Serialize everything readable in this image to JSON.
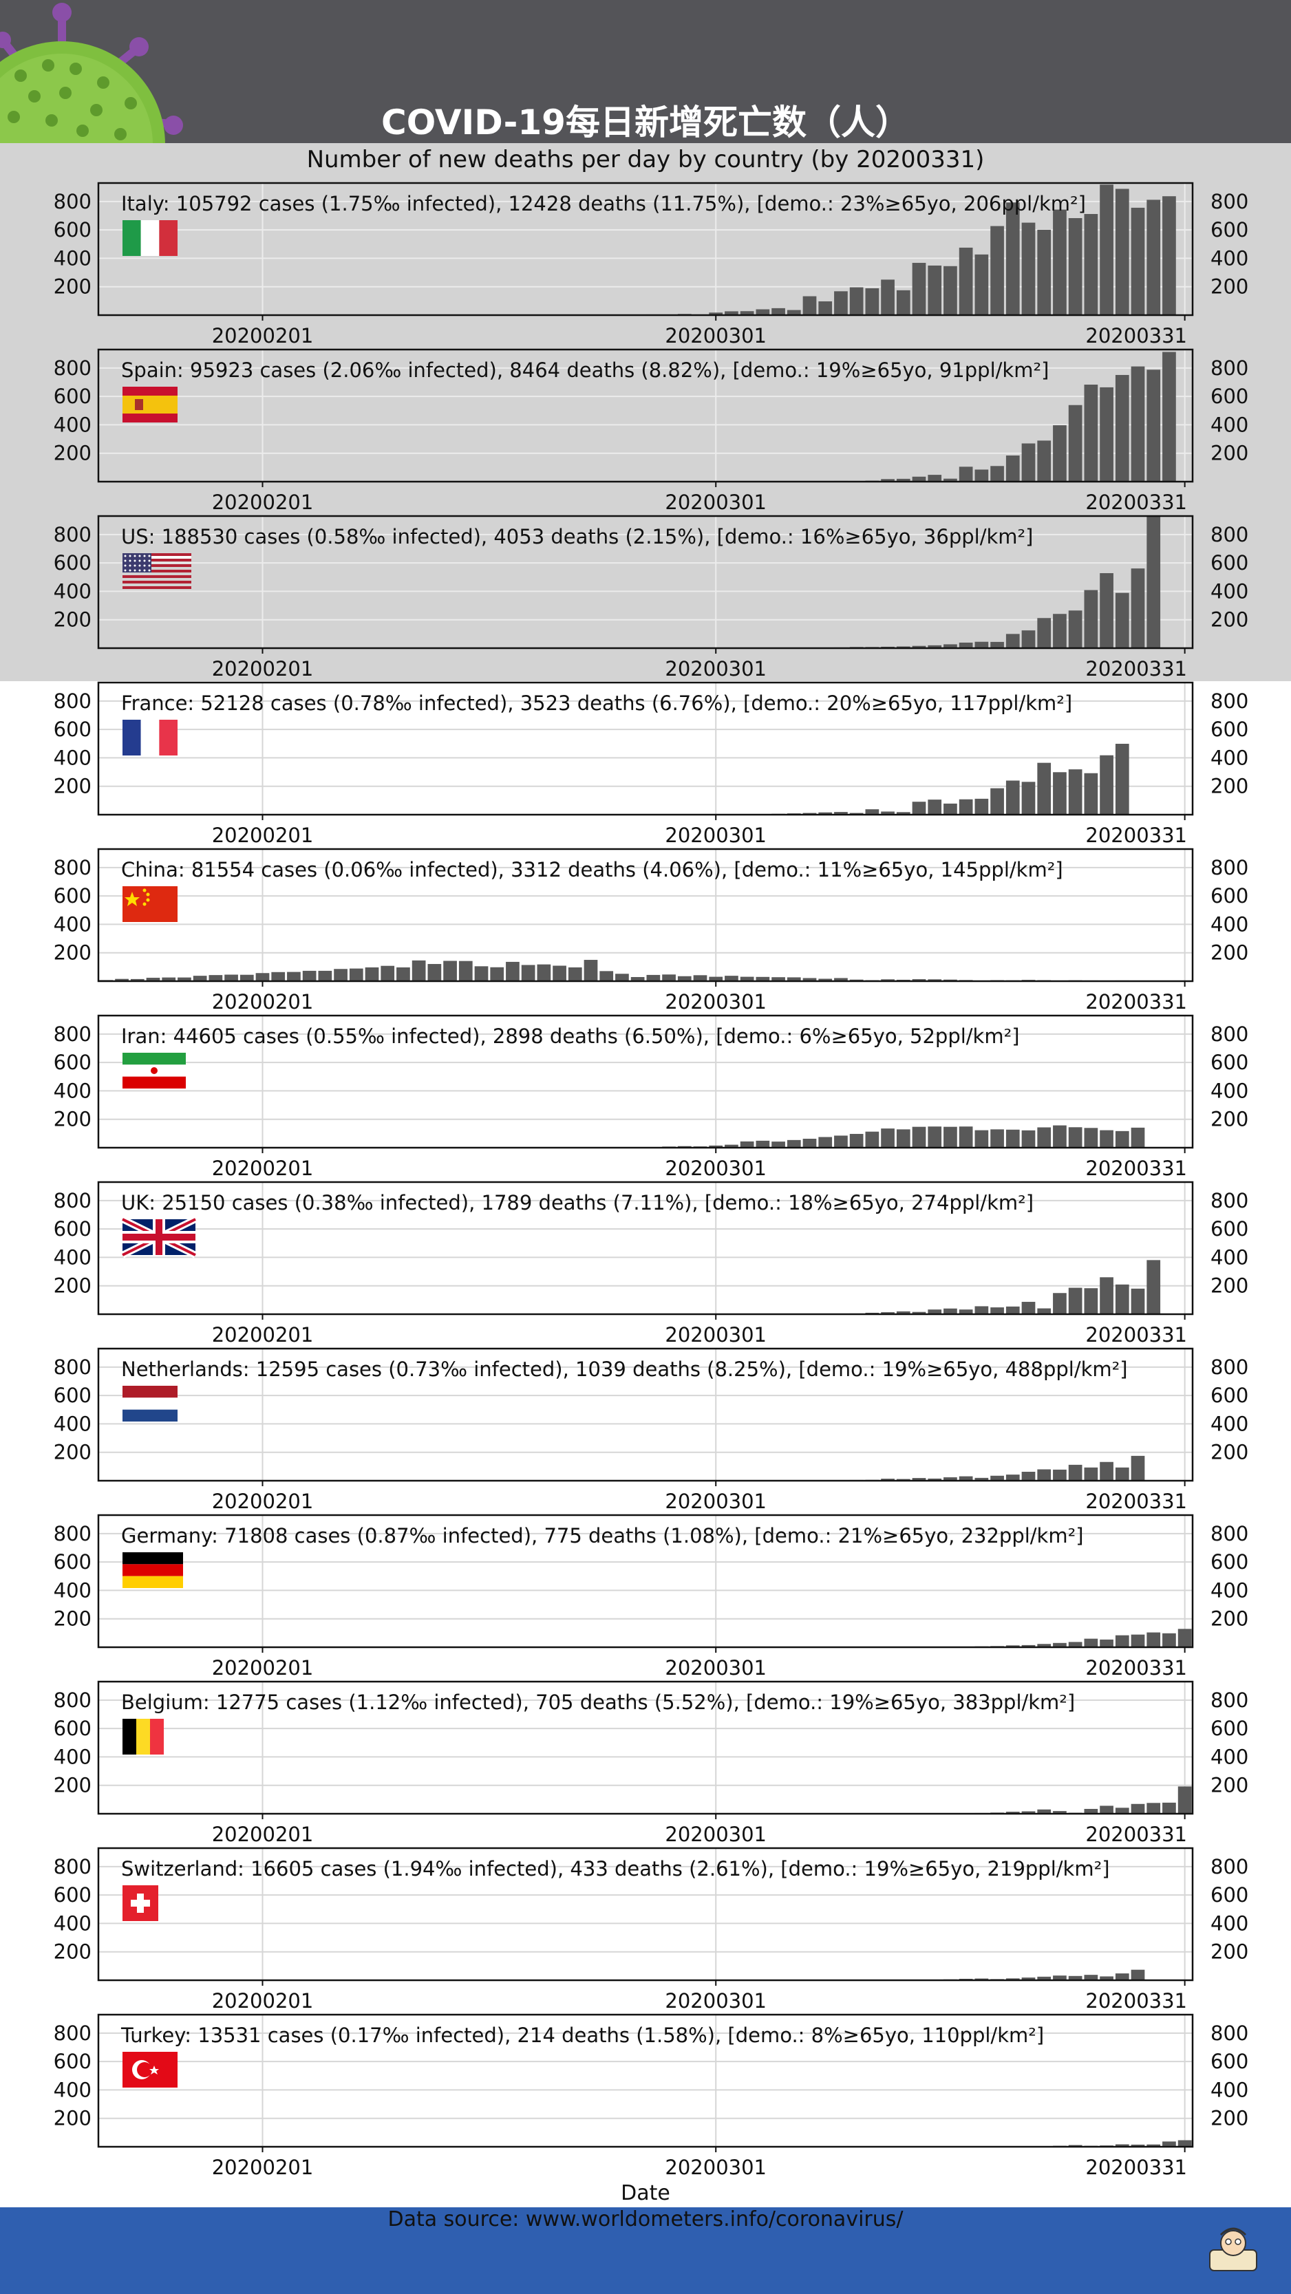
{
  "header": {
    "title": "COVID-19每日新增死亡数（人）",
    "subtitle": "Number of new deaths per day by country (by 20200331)"
  },
  "footer": {
    "source": "Data source: www.worldometers.info/coronavirus/"
  },
  "colors": {
    "header_bg": "#545458",
    "highlight_band": "#d3d3d3",
    "bar": "#595959",
    "footer_bg": "#2f5fb0"
  },
  "chart_data": {
    "type": "bar",
    "xlabel": "Date",
    "x_start": "20200122",
    "x_end": "20200331",
    "x_ticks": [
      "20200201",
      "20200301",
      "20200331"
    ],
    "y_ticks": [
      200,
      400,
      600,
      800
    ],
    "ylim": [
      0,
      930
    ],
    "grid": true,
    "panels": [
      {
        "name": "Italy",
        "flag": "italy-flag",
        "highlighted": true,
        "info": "Italy: 105792 cases (1.75‰ infected), 12428 deaths (11.75%), [demo.: 23%≥65yo, 206ppl/km²]",
        "values": [
          0,
          0,
          0,
          0,
          0,
          0,
          0,
          0,
          0,
          0,
          0,
          0,
          0,
          0,
          0,
          0,
          0,
          0,
          0,
          0,
          0,
          0,
          0,
          0,
          0,
          0,
          0,
          0,
          0,
          0,
          0,
          0,
          1,
          2,
          1,
          5,
          4,
          8,
          5,
          18,
          27,
          28,
          41,
          49,
          36,
          133,
          97,
          168,
          196,
          189,
          250,
          175,
          368,
          349,
          345,
          475,
          427,
          627,
          793,
          651,
          601,
          743,
          683,
          712,
          919,
          889,
          756,
          812,
          837
        ]
      },
      {
        "name": "Spain",
        "flag": "spain-flag",
        "highlighted": true,
        "info": "Spain: 95923 cases (2.06‰ infected), 8464 deaths (8.82%), [demo.: 19%≥65yo, 91ppl/km²]",
        "values": [
          0,
          0,
          0,
          0,
          0,
          0,
          0,
          0,
          0,
          0,
          0,
          0,
          0,
          0,
          0,
          0,
          0,
          0,
          0,
          0,
          0,
          0,
          0,
          0,
          0,
          0,
          0,
          0,
          0,
          0,
          0,
          0,
          0,
          0,
          0,
          0,
          0,
          0,
          0,
          0,
          0,
          0,
          0,
          0,
          1,
          2,
          3,
          5,
          0,
          7,
          18,
          20,
          35,
          48,
          21,
          105,
          85,
          110,
          184,
          269,
          289,
          397,
          539,
          683,
          664,
          751,
          811,
          788,
          913
        ]
      },
      {
        "name": "US",
        "flag": "us-flag",
        "highlighted": true,
        "info": "US: 188530 cases (0.58‰ infected), 4053 deaths (2.15%), [demo.: 16%≥65yo, 36ppl/km²]",
        "values": [
          0,
          0,
          0,
          0,
          0,
          0,
          0,
          0,
          0,
          0,
          0,
          0,
          0,
          0,
          0,
          0,
          0,
          0,
          0,
          0,
          0,
          0,
          0,
          0,
          0,
          0,
          0,
          0,
          0,
          0,
          0,
          0,
          0,
          0,
          0,
          0,
          0,
          0,
          0,
          1,
          2,
          1,
          2,
          3,
          2,
          4,
          4,
          5,
          8,
          8,
          10,
          12,
          16,
          20,
          27,
          39,
          45,
          44,
          100,
          125,
          212,
          241,
          265,
          409,
          528,
          389,
          561,
          930
        ]
      },
      {
        "name": "France",
        "flag": "france-flag",
        "highlighted": false,
        "info": "France: 52128 cases (0.78‰ infected), 3523 deaths (6.76%), [demo.: 20%≥65yo, 117ppl/km²]",
        "values": [
          0,
          0,
          0,
          0,
          0,
          0,
          0,
          0,
          0,
          0,
          0,
          0,
          0,
          0,
          0,
          0,
          0,
          0,
          0,
          0,
          0,
          0,
          0,
          0,
          0,
          0,
          0,
          0,
          0,
          0,
          0,
          0,
          0,
          0,
          0,
          0,
          0,
          0,
          0,
          1,
          2,
          3,
          2,
          6,
          9,
          12,
          16,
          19,
          12,
          38,
          22,
          18,
          91,
          106,
          78,
          108,
          112,
          186,
          240,
          231,
          365,
          299,
          319,
          292,
          418,
          499
        ]
      },
      {
        "name": "China",
        "flag": "china-flag",
        "highlighted": false,
        "info": "China: 81554 cases (0.06‰ infected), 3312 deaths (4.06%), [demo.: 11%≥65yo, 145ppl/km²]",
        "values": [
          8,
          16,
          15,
          24,
          26,
          26,
          38,
          43,
          46,
          45,
          57,
          64,
          65,
          73,
          73,
          86,
          89,
          97,
          108,
          97,
          146,
          121,
          143,
          142,
          105,
          98,
          136,
          114,
          118,
          109,
          97,
          150,
          71,
          52,
          29,
          44,
          47,
          35,
          42,
          31,
          38,
          31,
          30,
          28,
          27,
          22,
          17,
          22,
          11,
          7,
          13,
          10,
          14,
          13,
          11,
          8,
          3,
          7,
          6,
          9,
          7,
          4,
          6,
          5,
          3,
          5,
          2,
          1,
          1
        ]
      },
      {
        "name": "Iran",
        "flag": "iran-flag",
        "highlighted": false,
        "info": "Iran: 44605 cases (0.55‰ infected), 2898 deaths (6.50%), [demo.: 6%≥65yo, 52ppl/km²]",
        "values": [
          0,
          0,
          0,
          0,
          0,
          0,
          0,
          0,
          0,
          0,
          0,
          0,
          0,
          0,
          0,
          0,
          0,
          0,
          0,
          0,
          0,
          0,
          0,
          0,
          0,
          0,
          0,
          0,
          0,
          0,
          0,
          2,
          2,
          4,
          3,
          4,
          8,
          11,
          9,
          15,
          21,
          44,
          49,
          43,
          54,
          63,
          75,
          85,
          97,
          113,
          135,
          129,
          147,
          149,
          147,
          149,
          123,
          129,
          127,
          122,
          143,
          157,
          144,
          139,
          123,
          117,
          141
        ]
      },
      {
        "name": "UK",
        "flag": "uk-flag",
        "highlighted": false,
        "info": "UK: 25150 cases (0.38‰ infected), 1789 deaths (7.11%), [demo.: 18%≥65yo, 274ppl/km²]",
        "values": [
          0,
          0,
          0,
          0,
          0,
          0,
          0,
          0,
          0,
          0,
          0,
          0,
          0,
          0,
          0,
          0,
          0,
          0,
          0,
          0,
          0,
          0,
          0,
          0,
          0,
          0,
          0,
          0,
          0,
          0,
          0,
          0,
          0,
          0,
          0,
          0,
          0,
          0,
          0,
          0,
          0,
          0,
          0,
          1,
          0,
          1,
          1,
          2,
          5,
          10,
          14,
          20,
          16,
          33,
          40,
          33,
          56,
          48,
          54,
          87,
          41,
          149,
          186,
          183,
          260,
          209,
          180,
          381
        ]
      },
      {
        "name": "Netherlands",
        "flag": "netherlands-flag",
        "highlighted": false,
        "info": "Netherlands: 12595 cases (0.73‰ infected), 1039 deaths (8.25%), [demo.: 19%≥65yo, 488ppl/km²]",
        "values": [
          0,
          0,
          0,
          0,
          0,
          0,
          0,
          0,
          0,
          0,
          0,
          0,
          0,
          0,
          0,
          0,
          0,
          0,
          0,
          0,
          0,
          0,
          0,
          0,
          0,
          0,
          0,
          0,
          0,
          0,
          0,
          0,
          0,
          0,
          0,
          0,
          0,
          0,
          0,
          0,
          0,
          0,
          0,
          0,
          0,
          1,
          2,
          3,
          5,
          6,
          14,
          12,
          19,
          15,
          24,
          31,
          20,
          35,
          43,
          63,
          80,
          78,
          112,
          93,
          132,
          93,
          175
        ]
      },
      {
        "name": "Germany",
        "flag": "germany-flag",
        "highlighted": false,
        "info": "Germany: 71808 cases (0.87‰ infected), 775 deaths (1.08%), [demo.: 21%≥65yo, 232ppl/km²]",
        "values": [
          0,
          0,
          0,
          0,
          0,
          0,
          0,
          0,
          0,
          0,
          0,
          0,
          0,
          0,
          0,
          0,
          0,
          0,
          0,
          0,
          0,
          0,
          0,
          0,
          0,
          0,
          0,
          0,
          0,
          0,
          0,
          0,
          0,
          0,
          0,
          0,
          0,
          0,
          0,
          0,
          0,
          0,
          0,
          0,
          0,
          0,
          0,
          0,
          0,
          2,
          0,
          1,
          3,
          2,
          4,
          4,
          6,
          8,
          13,
          15,
          23,
          30,
          37,
          60,
          54,
          84,
          89,
          104,
          98,
          129
        ]
      },
      {
        "name": "Belgium",
        "flag": "belgium-flag",
        "highlighted": false,
        "info": "Belgium: 12775 cases (1.12‰ infected), 705 deaths (5.52%), [demo.: 19%≥65yo, 383ppl/km²]",
        "values": [
          0,
          0,
          0,
          0,
          0,
          0,
          0,
          0,
          0,
          0,
          0,
          0,
          0,
          0,
          0,
          0,
          0,
          0,
          0,
          0,
          0,
          0,
          0,
          0,
          0,
          0,
          0,
          0,
          0,
          0,
          0,
          0,
          0,
          0,
          0,
          0,
          0,
          0,
          0,
          0,
          0,
          0,
          0,
          0,
          0,
          0,
          0,
          0,
          0,
          0,
          0,
          1,
          2,
          2,
          0,
          4,
          5,
          8,
          14,
          17,
          30,
          19,
          7,
          34,
          56,
          42,
          69,
          76,
          78,
          192
        ]
      },
      {
        "name": "Switzerland",
        "flag": "switzerland-flag",
        "highlighted": false,
        "info": "Switzerland: 16605 cases (1.94‰ infected), 433 deaths (2.61%), [demo.: 19%≥65yo, 219ppl/km²]",
        "values": [
          0,
          0,
          0,
          0,
          0,
          0,
          0,
          0,
          0,
          0,
          0,
          0,
          0,
          0,
          0,
          0,
          0,
          0,
          0,
          0,
          0,
          0,
          0,
          0,
          0,
          0,
          0,
          0,
          0,
          0,
          0,
          0,
          0,
          0,
          0,
          0,
          0,
          0,
          0,
          0,
          0,
          0,
          0,
          0,
          0,
          0,
          0,
          1,
          1,
          2,
          3,
          4,
          2,
          3,
          6,
          10,
          12,
          8,
          13,
          19,
          25,
          33,
          30,
          38,
          27,
          48,
          74
        ]
      },
      {
        "name": "Turkey",
        "flag": "turkey-flag",
        "highlighted": false,
        "info": "Turkey: 13531 cases (0.17‰ infected), 214 deaths (1.58%), [demo.: 8%≥65yo, 110ppl/km²]",
        "values": [
          0,
          0,
          0,
          0,
          0,
          0,
          0,
          0,
          0,
          0,
          0,
          0,
          0,
          0,
          0,
          0,
          0,
          0,
          0,
          0,
          0,
          0,
          0,
          0,
          0,
          0,
          0,
          0,
          0,
          0,
          0,
          0,
          0,
          0,
          0,
          0,
          0,
          0,
          0,
          0,
          0,
          0,
          0,
          0,
          0,
          0,
          0,
          0,
          0,
          0,
          0,
          0,
          0,
          0,
          0,
          1,
          1,
          0,
          1,
          2,
          2,
          7,
          12,
          7,
          9,
          17,
          15,
          16,
          37,
          46
        ]
      }
    ]
  }
}
